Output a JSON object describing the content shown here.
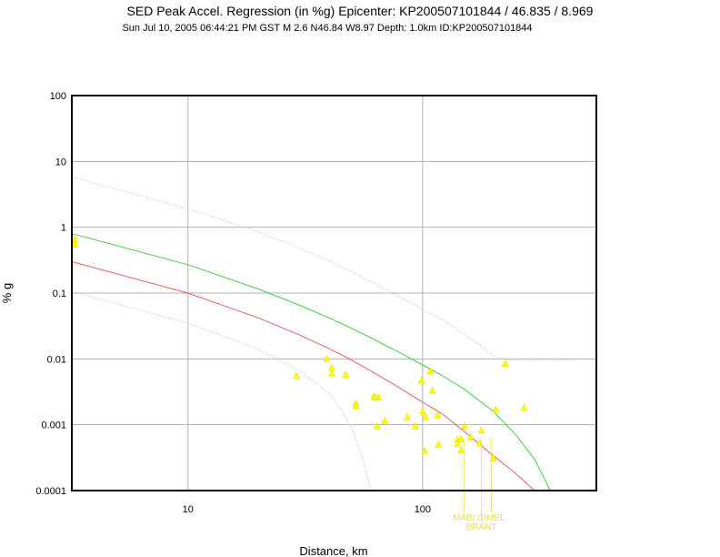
{
  "chart_data": {
    "type": "scatter",
    "title": "SED Peak Accel. Regression (in %g) Epicenter: KP200507101844 / 46.835 / 8.969",
    "subtitle": "Sun Jul 10, 2005 06:44:21 PM GST   M 2.6   N46.84 W8.97   Depth: 1.0km   ID:KP200507101844",
    "xlabel": "Distance, km",
    "ylabel": "% g",
    "x_scale": "log",
    "y_scale": "log",
    "xlim": [
      3.2,
      550
    ],
    "ylim": [
      0.0001,
      100
    ],
    "x_ticks": [
      {
        "v": 10,
        "label": "10"
      },
      {
        "v": 100,
        "label": "100"
      }
    ],
    "y_ticks": [
      {
        "v": 100,
        "label": "100"
      },
      {
        "v": 10,
        "label": "10"
      },
      {
        "v": 1,
        "label": "1"
      },
      {
        "v": 0.1,
        "label": "0.1"
      },
      {
        "v": 0.01,
        "label": "0.01"
      },
      {
        "v": 0.001,
        "label": "0.001"
      },
      {
        "v": 0.0001,
        "label": "0.0001"
      }
    ],
    "grid": true,
    "colors": {
      "points": "#ffff00",
      "median": "#e06060",
      "bound": "#44cc44",
      "outer": "#88dd88",
      "station": "#e8e04a"
    },
    "series": [
      {
        "kind": "points",
        "x": [
          3.3,
          3.3,
          29,
          39,
          41,
          41,
          47,
          52,
          52,
          62,
          64,
          65,
          63,
          69,
          86,
          93,
          99,
          100,
          102,
          103,
          108,
          110,
          116,
          117,
          141,
          141,
          146,
          146,
          151,
          160,
          175,
          178,
          200,
          205,
          225,
          270
        ],
        "y": [
          0.65,
          0.55,
          0.0055,
          0.01,
          0.0073,
          0.006,
          0.0057,
          0.0021,
          0.0019,
          0.0027,
          0.00095,
          0.0026,
          0.0026,
          0.00115,
          0.0013,
          0.00095,
          0.0047,
          0.0016,
          0.0004,
          0.0013,
          0.0065,
          0.0033,
          0.0014,
          0.0005,
          0.0006,
          0.00052,
          0.0006,
          0.00041,
          0.00095,
          0.00064,
          0.00052,
          0.00082,
          0.00031,
          0.0017,
          0.0084,
          0.0018
        ]
      },
      {
        "kind": "curve",
        "role": "median",
        "x": [
          3.2,
          10,
          20,
          30,
          40,
          50,
          60,
          70,
          80,
          100,
          120,
          150,
          200,
          250,
          300
        ],
        "y": [
          0.3,
          0.1,
          0.042,
          0.023,
          0.0143,
          0.0095,
          0.0066,
          0.0048,
          0.0036,
          0.0022,
          0.0015,
          0.0008,
          0.00034,
          0.00018,
          0.0001
        ]
      },
      {
        "kind": "curve",
        "role": "upper",
        "x": [
          3.2,
          10,
          20,
          30,
          40,
          50,
          60,
          70,
          80,
          100,
          120,
          150,
          200,
          250,
          300,
          350
        ],
        "y": [
          0.8,
          0.27,
          0.115,
          0.065,
          0.042,
          0.029,
          0.021,
          0.0158,
          0.0124,
          0.0081,
          0.0057,
          0.0035,
          0.0016,
          0.0007,
          0.0003,
          0.0001
        ]
      },
      {
        "kind": "curve",
        "role": "outer-upper",
        "x": [
          3.2,
          10,
          20,
          30,
          40,
          50,
          60,
          70,
          80,
          100,
          120,
          150,
          180,
          200,
          230,
          450
        ],
        "y": [
          5.8,
          1.9,
          0.85,
          0.48,
          0.31,
          0.21,
          0.15,
          0.113,
          0.088,
          0.057,
          0.04,
          0.024,
          0.015,
          0.011,
          0.0095,
          0.0095
        ]
      },
      {
        "kind": "curve",
        "role": "outer-lower",
        "x": [
          3.2,
          10,
          20,
          30,
          40,
          45,
          50,
          55,
          60
        ],
        "y": [
          0.105,
          0.035,
          0.014,
          0.0065,
          0.003,
          0.0017,
          0.00085,
          0.00035,
          0.0001
        ]
      }
    ],
    "station_labels": [
      {
        "text": "MABI",
        "x": 150,
        "row": 1
      },
      {
        "text": "GIMEL",
        "x": 196,
        "row": 1
      },
      {
        "text": "BRANT",
        "x": 178,
        "row": 2
      }
    ]
  }
}
